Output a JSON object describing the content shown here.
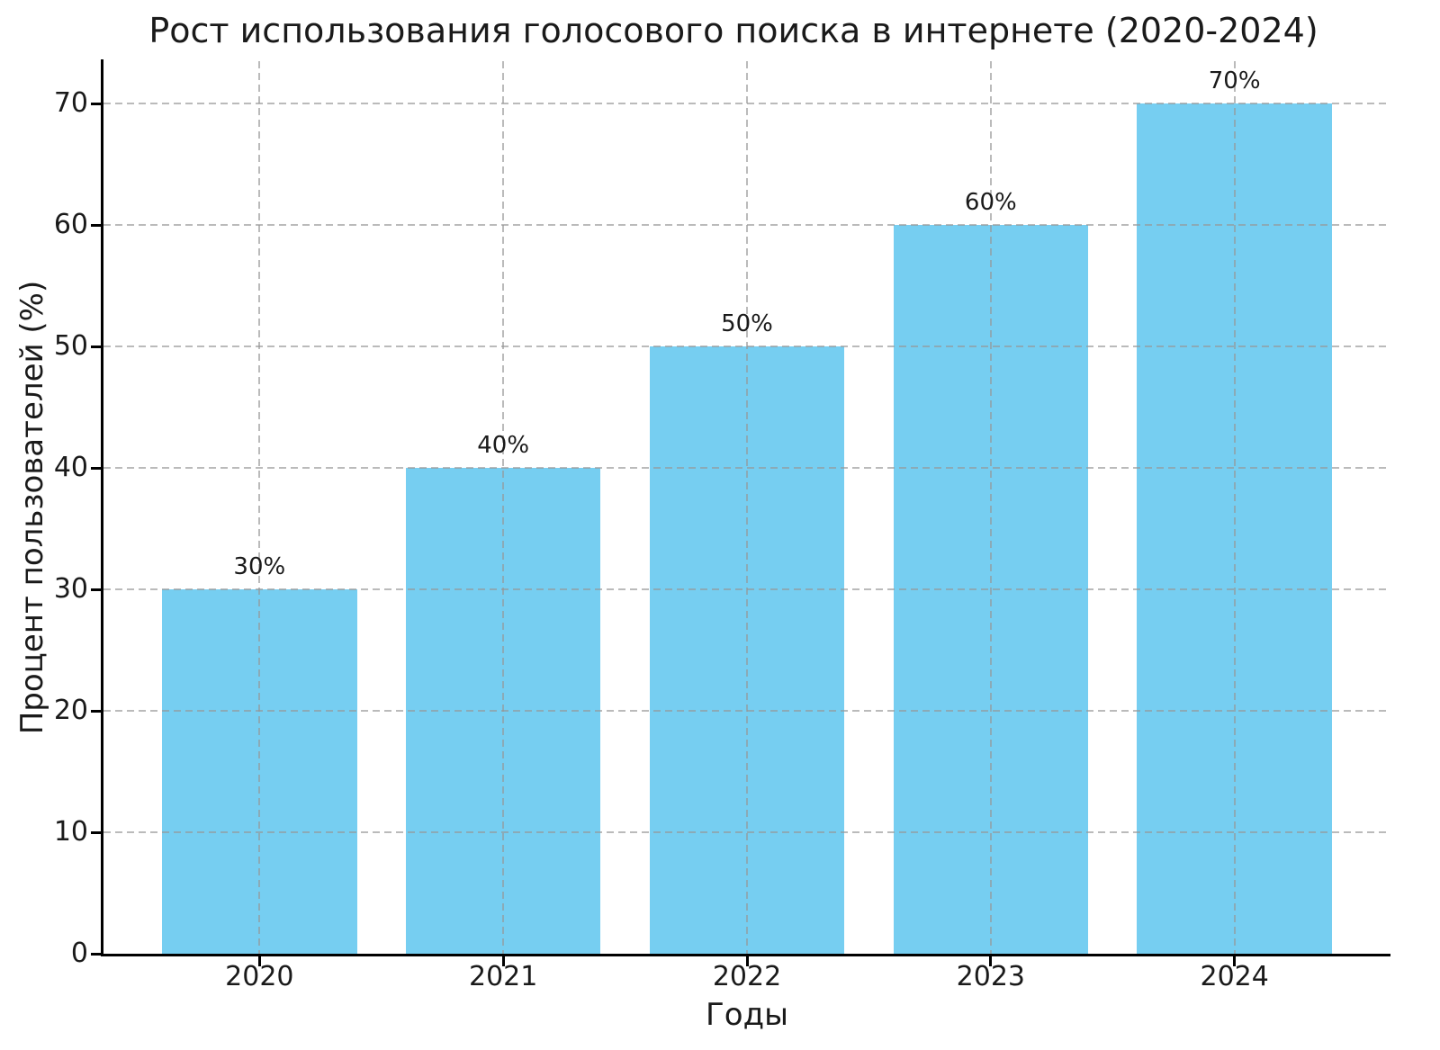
{
  "chart_data": {
    "type": "bar",
    "title": "Рост использования голосового поиска в интернете (2020-2024)",
    "xlabel": "Годы",
    "ylabel": "Процент пользователей (%)",
    "categories": [
      "2020",
      "2021",
      "2022",
      "2023",
      "2024"
    ],
    "values": [
      30,
      40,
      50,
      60,
      70
    ],
    "bar_labels": [
      "30%",
      "40%",
      "50%",
      "60%",
      "70%"
    ],
    "yticks": [
      0,
      10,
      20,
      30,
      40,
      50,
      60,
      70
    ],
    "ylim": [
      0,
      73.5
    ],
    "grid": {
      "visible": true,
      "style": "dashed",
      "axes": "both",
      "above_bars": true
    },
    "legend": null,
    "colors": {
      "bar": "#76CEF1",
      "grid": "#b0b0b0",
      "spine": "#000000",
      "text": "#1a1a1a",
      "background": "#ffffff"
    }
  }
}
